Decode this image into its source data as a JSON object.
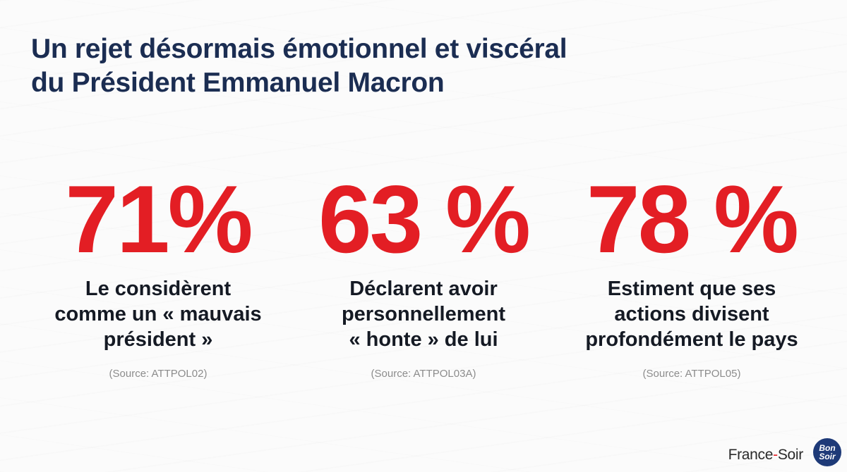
{
  "title": {
    "line1": "Un rejet désormais émotionnel et viscéral",
    "line2": "du Président Emmanuel Macron"
  },
  "stats": [
    {
      "value": "71%",
      "description": "Le considèrent\ncomme un « mauvais\nprésident »",
      "source": "(Source: ATTPOL02)"
    },
    {
      "value": "63 %",
      "description": "Déclarent avoir\npersonnellement\n« honte » de lui",
      "source": "(Source: ATTPOL03A)"
    },
    {
      "value": "78 %",
      "description": "Estiment que ses\nactions divisent\nprofondément le pays",
      "source": "(Source: ATTPOL05)"
    }
  ],
  "footer": {
    "brand_part1": "France",
    "brand_dash": "-",
    "brand_part2": "Soir",
    "badge_text": "Bon Soir"
  },
  "colors": {
    "title": "#1b2d52",
    "stat_value": "#e31e24",
    "description": "#151a24",
    "source": "#8c8c8c",
    "badge_bg": "#1e3a78"
  }
}
